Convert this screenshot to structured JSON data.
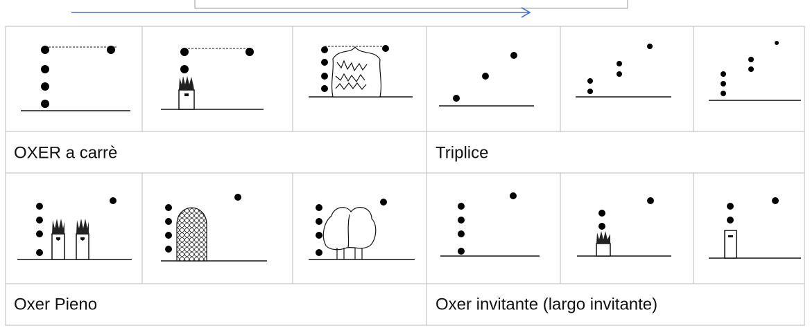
{
  "table": {
    "rows": [
      [
        "OXER a carrè",
        "Triplice"
      ],
      [
        "Oxer Pieno",
        "Oxer invitante (largo invitante)"
      ]
    ]
  }
}
